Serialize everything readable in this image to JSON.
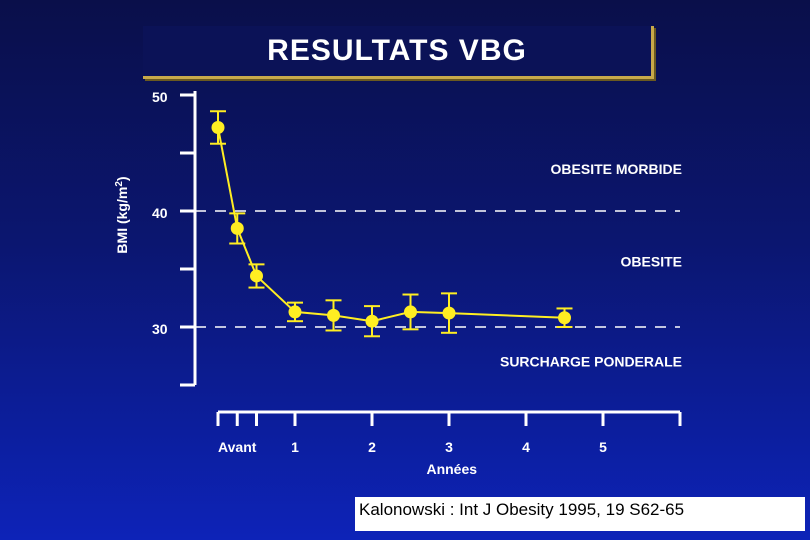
{
  "header": {
    "title": "RESULTATS  VBG"
  },
  "source": "Kalonowski : Int J Obesity 1995, 19 S62-65",
  "colors": {
    "background": "#0b1670",
    "series": "#ffee22",
    "axis": "#ffffff",
    "title_border": "#c8a94a"
  },
  "chart_data": {
    "type": "line",
    "title": "RESULTATS  VBG",
    "xlabel": "Années",
    "ylabel": "BMI (kg/m²)",
    "ylabel_main": "BMI (kg/m",
    "ylabel_sup": "2",
    "ylabel_end": ")",
    "xlim": [
      -1,
      5
    ],
    "ylim": [
      25,
      50
    ],
    "y_ticks": [
      50,
      45,
      40,
      35,
      30,
      25
    ],
    "y_tick_labels": [
      {
        "value": 50,
        "label": "50"
      },
      {
        "value": 40,
        "label": "40"
      },
      {
        "value": 30,
        "label": "30"
      }
    ],
    "x_ticks": [
      -1,
      -0.75,
      -0.5,
      0,
      1,
      2,
      3,
      4,
      5
    ],
    "x_tick_labels": [
      {
        "value": -0.75,
        "label": "Avant"
      },
      {
        "value": 0,
        "label": "1"
      },
      {
        "value": 1,
        "label": "2"
      },
      {
        "value": 2,
        "label": "3"
      },
      {
        "value": 3,
        "label": "4"
      },
      {
        "value": 4,
        "label": "5"
      }
    ],
    "thresholds": [
      {
        "y": 40,
        "style": "dashed"
      },
      {
        "y": 30,
        "style": "dashed"
      }
    ],
    "zones": [
      {
        "label": "OBESITE MORBIDE",
        "y": 43.2
      },
      {
        "label": "OBESITE",
        "y": 35.2
      },
      {
        "label": "SURCHARGE PONDERALE",
        "y": 26.6
      }
    ],
    "series": [
      {
        "x": [
          -1,
          -0.75,
          -0.5,
          0,
          0.5,
          1,
          1.5,
          2,
          3.5
        ],
        "y": [
          47.2,
          38.5,
          34.4,
          31.3,
          31.0,
          30.5,
          31.3,
          31.2,
          30.8
        ],
        "err": [
          1.4,
          1.3,
          1.0,
          0.8,
          1.3,
          1.3,
          1.5,
          1.7,
          0.8
        ]
      }
    ]
  }
}
